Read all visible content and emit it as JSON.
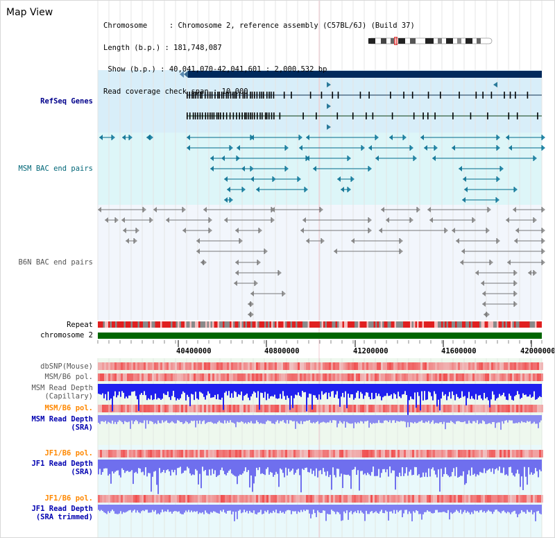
{
  "view": {
    "title": "Map View",
    "info_lines": [
      "Chromosome     : Chromosome 2, reference assembly (C57BL/6J) (Build 37)",
      "Length (b.p.) : 181,748,087",
      " Show (b.p.) : 40,041,070-42,041,601 : 2,000,532 bp",
      "Read coverage check span : 10,000"
    ]
  },
  "labels": {
    "refseq": "RefSeq Genes",
    "msm_bac": "MSM BAC end pairs",
    "b6n_bac": "B6N BAC end pairs",
    "repeat": "Repeat",
    "chromosome": "chromosome 2",
    "dbsnp": "dbSNP(Mouse)",
    "msm_b6_pol_1": "MSM/B6 pol.",
    "msm_depth_cap_1": "MSM Read Depth",
    "msm_depth_cap_2": "(Capillary)",
    "msm_b6_pol_2": "MSM/B6 pol.",
    "msm_depth_sra_1": "MSM Read Depth",
    "msm_depth_sra_2": "(SRA)",
    "jf1_b6_pol_1": "JF1/B6 pol.",
    "jf1_depth_sra_1": "JF1 Read Depth",
    "jf1_depth_sra_2": "(SRA)",
    "jf1_b6_pol_2": "JF1/B6 pol.",
    "jf1_depth_trim_1": "JF1 Read Depth",
    "jf1_depth_trim_2": "(SRA trimmed)"
  },
  "axis": {
    "ticks": [
      "40400000",
      "40800000",
      "41200000",
      "41600000",
      "42000000"
    ]
  },
  "colors": {
    "refseq_bg": "#d8eef9",
    "msm_bg": "#ddf6f8",
    "b6n_bg": "#f2f6fc",
    "depth_bg": "#eef8ee",
    "gene_dark": "#002a5c",
    "msm_line": "#006a8a",
    "b6n_line": "#777777",
    "chromosome_bar": "#006600",
    "depth_blue": "#2020ee",
    "depth_light": "#6f6fee"
  }
}
